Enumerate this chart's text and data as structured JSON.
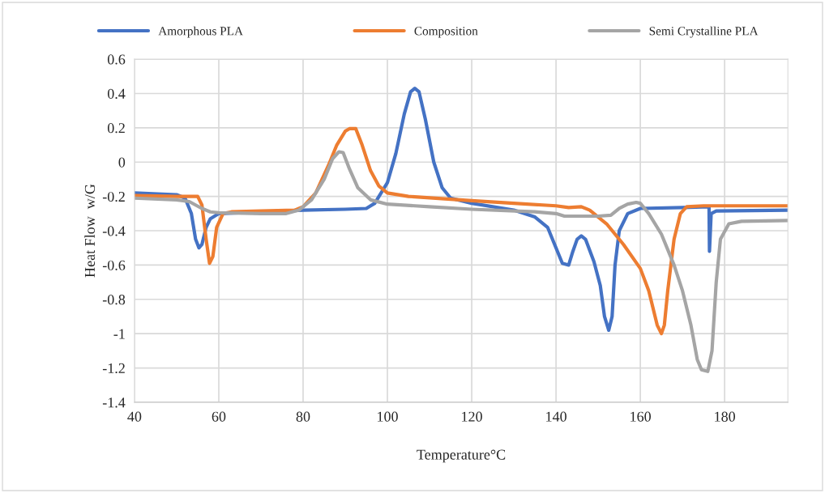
{
  "chart_data": {
    "type": "line",
    "xlabel": "Temperature°C",
    "ylabel": "Heat Flow  w/G",
    "xlim": [
      40,
      195
    ],
    "xticks": [
      40,
      60,
      80,
      100,
      120,
      140,
      160,
      180
    ],
    "ylim": [
      -1.4,
      0.6
    ],
    "yticks": [
      -1.4,
      -1.2,
      -1,
      -0.8,
      -0.6,
      -0.4,
      -0.2,
      0,
      0.2,
      0.4,
      0.6
    ],
    "grid": true,
    "legend": "top",
    "marker": "none",
    "line_style": "solid",
    "series": [
      {
        "name": "Amorphous PLA",
        "color": "#4472c4",
        "x": [
          40,
          50,
          52,
          53.5,
          54.5,
          55.3,
          56,
          57,
          58,
          60,
          80,
          90,
          95,
          97,
          100,
          102,
          104,
          105.5,
          106.5,
          107.5,
          109,
          111,
          113,
          115,
          120,
          130,
          135,
          138,
          140,
          141.5,
          143,
          144,
          145,
          146,
          147,
          149,
          150.5,
          151.5,
          152.5,
          153.3,
          154,
          155,
          157,
          160,
          170,
          176.3,
          176.4,
          176.8,
          178,
          195
        ],
        "values": [
          -0.18,
          -0.19,
          -0.21,
          -0.3,
          -0.45,
          -0.5,
          -0.48,
          -0.38,
          -0.33,
          -0.3,
          -0.28,
          -0.275,
          -0.27,
          -0.24,
          -0.12,
          0.05,
          0.28,
          0.41,
          0.43,
          0.41,
          0.25,
          0.0,
          -0.15,
          -0.21,
          -0.24,
          -0.28,
          -0.32,
          -0.38,
          -0.5,
          -0.59,
          -0.6,
          -0.52,
          -0.45,
          -0.43,
          -0.45,
          -0.58,
          -0.72,
          -0.9,
          -0.98,
          -0.9,
          -0.6,
          -0.4,
          -0.3,
          -0.27,
          -0.265,
          -0.26,
          -0.52,
          -0.3,
          -0.285,
          -0.28
        ]
      },
      {
        "name": "Composition",
        "color": "#ed7d31",
        "x": [
          40,
          50,
          55,
          56,
          57,
          57.8,
          58.6,
          59.5,
          61,
          63,
          70,
          78,
          80,
          83,
          86,
          88,
          90,
          91,
          92.5,
          94,
          96,
          98,
          100,
          105,
          120,
          130,
          140,
          143,
          146,
          148,
          152,
          156,
          160,
          162,
          164,
          165,
          165.7,
          166.5,
          168,
          169.5,
          171,
          175,
          195
        ],
        "values": [
          -0.195,
          -0.2,
          -0.2,
          -0.25,
          -0.45,
          -0.59,
          -0.55,
          -0.38,
          -0.3,
          -0.29,
          -0.285,
          -0.28,
          -0.26,
          -0.18,
          -0.02,
          0.1,
          0.18,
          0.195,
          0.195,
          0.1,
          -0.05,
          -0.14,
          -0.18,
          -0.2,
          -0.225,
          -0.24,
          -0.255,
          -0.265,
          -0.26,
          -0.28,
          -0.36,
          -0.48,
          -0.62,
          -0.75,
          -0.95,
          -1.0,
          -0.95,
          -0.75,
          -0.45,
          -0.3,
          -0.26,
          -0.255,
          -0.255
        ]
      },
      {
        "name": "Semi Crystalline PLA",
        "color": "#a5a5a5",
        "x": [
          40,
          50,
          53,
          56,
          58,
          60,
          70,
          76,
          79,
          82,
          85,
          87,
          88.5,
          89.5,
          91,
          93,
          96,
          100,
          110,
          120,
          135,
          140,
          142,
          150,
          153,
          155,
          157,
          159,
          160,
          162,
          165,
          168,
          170,
          172,
          173.5,
          174.5,
          176,
          177,
          178,
          179,
          181,
          184,
          195
        ],
        "values": [
          -0.21,
          -0.22,
          -0.23,
          -0.27,
          -0.29,
          -0.295,
          -0.3,
          -0.3,
          -0.28,
          -0.22,
          -0.1,
          0.02,
          0.06,
          0.055,
          -0.04,
          -0.15,
          -0.22,
          -0.245,
          -0.26,
          -0.275,
          -0.29,
          -0.3,
          -0.315,
          -0.315,
          -0.31,
          -0.27,
          -0.245,
          -0.235,
          -0.24,
          -0.3,
          -0.42,
          -0.6,
          -0.75,
          -0.95,
          -1.15,
          -1.21,
          -1.22,
          -1.1,
          -0.7,
          -0.45,
          -0.36,
          -0.345,
          -0.34
        ]
      }
    ]
  }
}
